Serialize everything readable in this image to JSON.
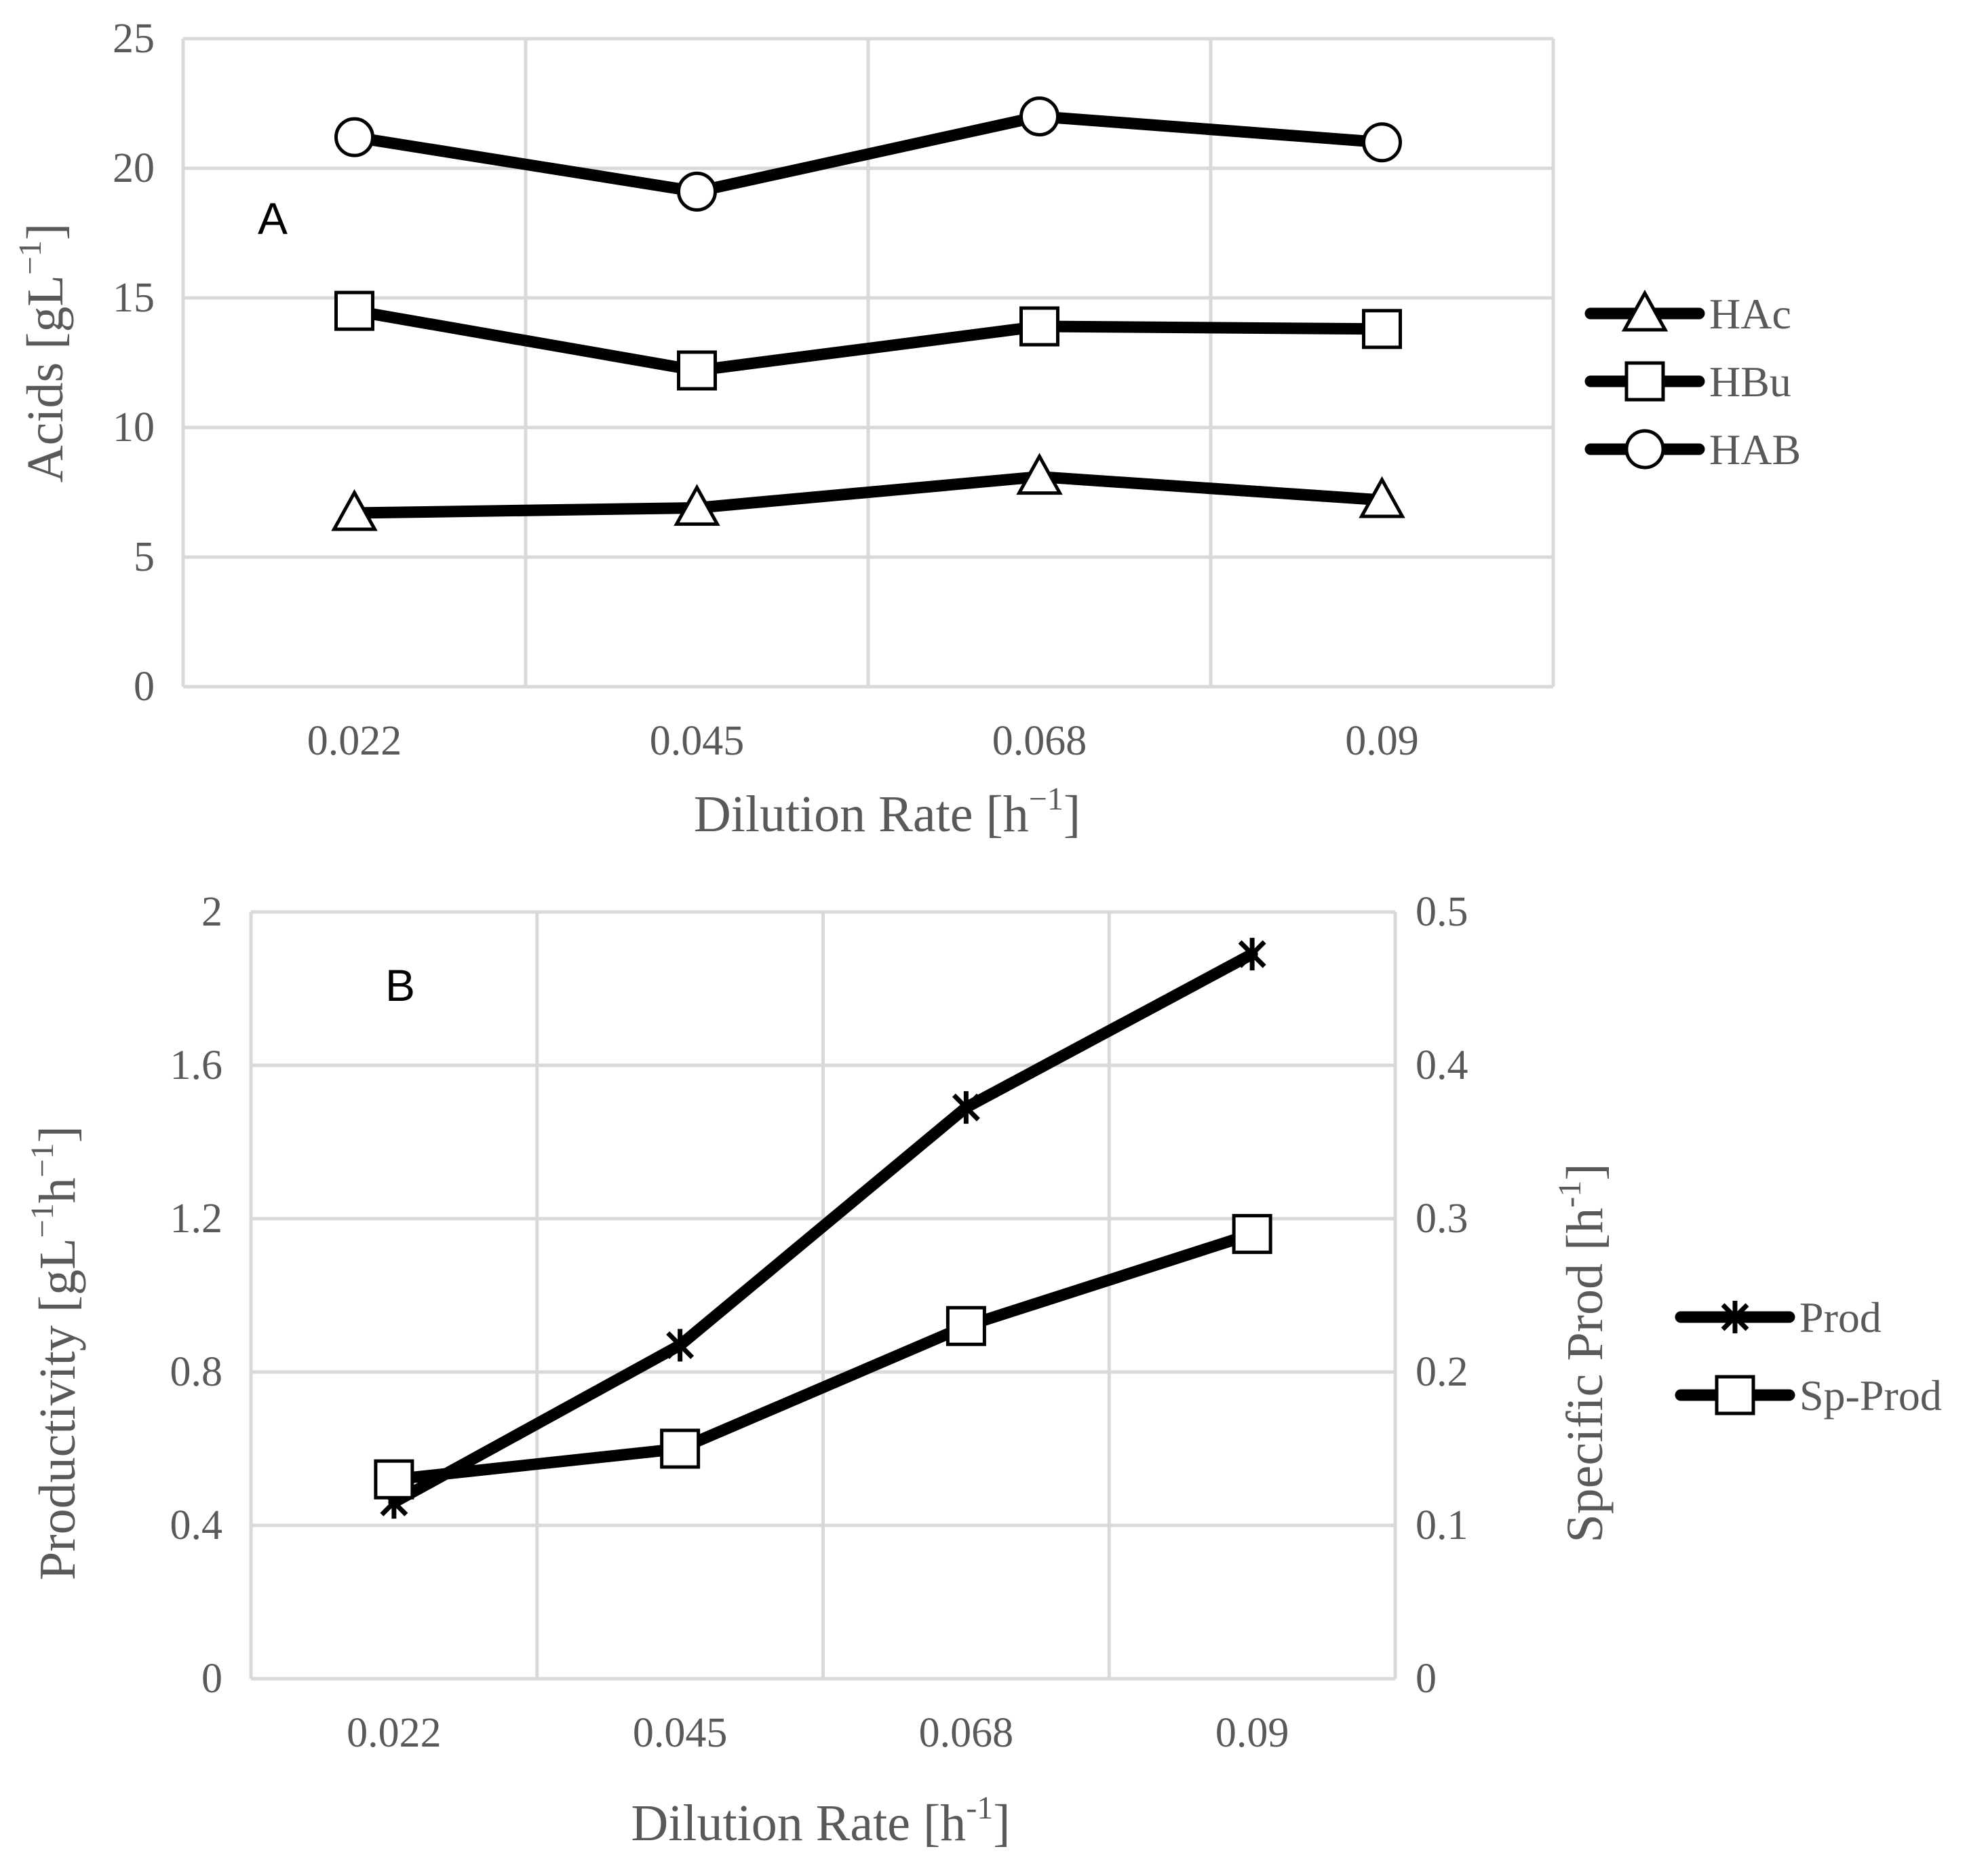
{
  "chart_data": [
    {
      "panel": "A",
      "type": "line",
      "categories": [
        "0.022",
        "0.045",
        "0.068",
        "0.09"
      ],
      "series": [
        {
          "name": "HAc",
          "marker": "triangle",
          "values": [
            6.7,
            6.9,
            8.1,
            7.2
          ]
        },
        {
          "name": "HBu",
          "marker": "square",
          "values": [
            14.5,
            12.2,
            13.9,
            13.8
          ]
        },
        {
          "name": "HAB",
          "marker": "circle",
          "values": [
            21.2,
            19.1,
            22.0,
            21.0
          ]
        }
      ],
      "xlabel": "Dilution Rate [h⁻¹]",
      "ylabel": "Acids [gL⁻¹]",
      "ylim": [
        0,
        25
      ],
      "yticks": [
        "0",
        "5",
        "10",
        "15",
        "20",
        "25"
      ],
      "grid": true,
      "legend": "right"
    },
    {
      "panel": "B",
      "type": "line",
      "categories": [
        "0.022",
        "0.045",
        "0.068",
        "0.09"
      ],
      "series": [
        {
          "name": "Prod",
          "marker": "star",
          "axis": "left",
          "values": [
            0.46,
            0.87,
            1.49,
            1.89
          ]
        },
        {
          "name": "Sp-Prod",
          "marker": "square",
          "axis": "right",
          "values": [
            0.13,
            0.15,
            0.23,
            0.29
          ]
        }
      ],
      "xlabel": "Dilution Rate [h-1]",
      "ylabel": "Productivity [gL⁻¹h⁻¹]",
      "y2label": "Specific Prod [h-1]",
      "ylim": [
        0,
        2
      ],
      "y2lim": [
        0,
        0.5
      ],
      "yticks": [
        "0",
        "0.4",
        "0.8",
        "1.2",
        "1.6",
        "2"
      ],
      "y2ticks": [
        "0",
        "0.1",
        "0.2",
        "0.3",
        "0.4",
        "0.5"
      ],
      "grid": true,
      "legend": "right"
    }
  ]
}
